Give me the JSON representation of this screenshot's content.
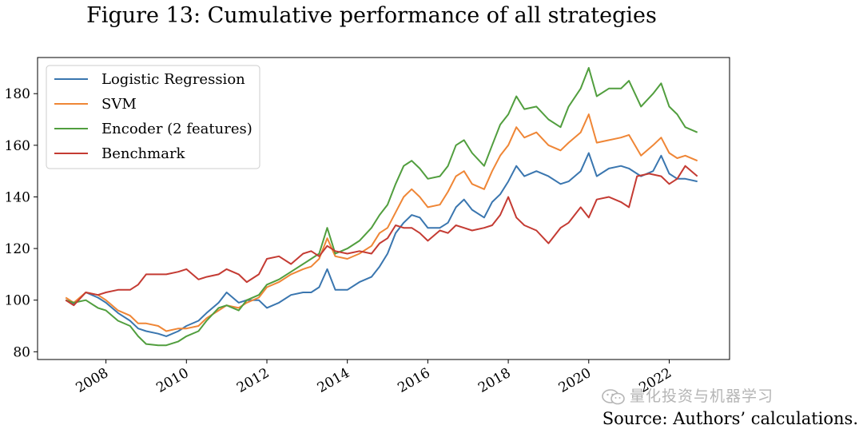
{
  "figure_title": "Figure 13: Cumulative performance of all strategies",
  "source_note": "Source: Authors’ calculations.",
  "watermark_text": "量化投资与机器学习",
  "chart_data": {
    "type": "line",
    "title": "Figure 13: Cumulative performance of all strategies",
    "xlabel": "",
    "ylabel": "",
    "xlim": [
      2006.3,
      2023.5
    ],
    "ylim": [
      77,
      194
    ],
    "x_ticks": [
      2008,
      2010,
      2012,
      2014,
      2016,
      2018,
      2020,
      2022
    ],
    "x_tick_labels": [
      "2008",
      "2010",
      "2012",
      "2014",
      "2016",
      "2018",
      "2020",
      "2022"
    ],
    "y_ticks": [
      80,
      100,
      120,
      140,
      160,
      180
    ],
    "y_tick_labels": [
      "80",
      "100",
      "120",
      "140",
      "160",
      "180"
    ],
    "grid": false,
    "legend_position": "top-left",
    "series": [
      {
        "name": "Logistic Regression",
        "color": "#3a76af",
        "points": [
          [
            2007.0,
            100
          ],
          [
            2007.2,
            98.5
          ],
          [
            2007.5,
            103
          ],
          [
            2007.8,
            101
          ],
          [
            2008.0,
            99
          ],
          [
            2008.3,
            95
          ],
          [
            2008.6,
            92
          ],
          [
            2008.8,
            89
          ],
          [
            2009.0,
            88
          ],
          [
            2009.3,
            87
          ],
          [
            2009.5,
            86
          ],
          [
            2009.8,
            88
          ],
          [
            2010.0,
            90
          ],
          [
            2010.3,
            92
          ],
          [
            2010.5,
            95
          ],
          [
            2010.8,
            99
          ],
          [
            2011.0,
            103
          ],
          [
            2011.3,
            99
          ],
          [
            2011.5,
            100
          ],
          [
            2011.8,
            100
          ],
          [
            2012.0,
            97
          ],
          [
            2012.3,
            99
          ],
          [
            2012.6,
            102
          ],
          [
            2012.9,
            103
          ],
          [
            2013.1,
            103
          ],
          [
            2013.3,
            105
          ],
          [
            2013.5,
            112
          ],
          [
            2013.7,
            104
          ],
          [
            2014.0,
            104
          ],
          [
            2014.3,
            107
          ],
          [
            2014.6,
            109
          ],
          [
            2014.8,
            113
          ],
          [
            2015.0,
            118
          ],
          [
            2015.2,
            126
          ],
          [
            2015.4,
            130
          ],
          [
            2015.6,
            133
          ],
          [
            2015.8,
            132
          ],
          [
            2016.0,
            128
          ],
          [
            2016.3,
            128
          ],
          [
            2016.5,
            130
          ],
          [
            2016.7,
            136
          ],
          [
            2016.9,
            139
          ],
          [
            2017.1,
            135
          ],
          [
            2017.4,
            132
          ],
          [
            2017.6,
            138
          ],
          [
            2017.8,
            141
          ],
          [
            2018.0,
            146
          ],
          [
            2018.2,
            152
          ],
          [
            2018.4,
            148
          ],
          [
            2018.7,
            150
          ],
          [
            2019.0,
            148
          ],
          [
            2019.3,
            145
          ],
          [
            2019.5,
            146
          ],
          [
            2019.8,
            150
          ],
          [
            2020.0,
            157
          ],
          [
            2020.2,
            148
          ],
          [
            2020.5,
            151
          ],
          [
            2020.8,
            152
          ],
          [
            2021.0,
            151
          ],
          [
            2021.3,
            148
          ],
          [
            2021.6,
            150
          ],
          [
            2021.8,
            156
          ],
          [
            2022.0,
            149
          ],
          [
            2022.2,
            147
          ],
          [
            2022.4,
            147
          ],
          [
            2022.7,
            146
          ]
        ]
      },
      {
        "name": "SVM",
        "color": "#ef8636",
        "points": [
          [
            2007.0,
            101
          ],
          [
            2007.2,
            99
          ],
          [
            2007.5,
            103
          ],
          [
            2007.8,
            102
          ],
          [
            2008.0,
            100
          ],
          [
            2008.3,
            96
          ],
          [
            2008.6,
            94
          ],
          [
            2008.8,
            91
          ],
          [
            2009.0,
            91
          ],
          [
            2009.3,
            90
          ],
          [
            2009.5,
            88
          ],
          [
            2009.8,
            89
          ],
          [
            2010.0,
            89
          ],
          [
            2010.3,
            90
          ],
          [
            2010.5,
            93
          ],
          [
            2010.8,
            96
          ],
          [
            2011.0,
            98
          ],
          [
            2011.3,
            97
          ],
          [
            2011.5,
            99
          ],
          [
            2011.8,
            101
          ],
          [
            2012.0,
            105
          ],
          [
            2012.3,
            107
          ],
          [
            2012.6,
            110
          ],
          [
            2012.9,
            112
          ],
          [
            2013.1,
            113
          ],
          [
            2013.3,
            116
          ],
          [
            2013.5,
            124
          ],
          [
            2013.7,
            117
          ],
          [
            2014.0,
            116
          ],
          [
            2014.3,
            118
          ],
          [
            2014.6,
            121
          ],
          [
            2014.8,
            126
          ],
          [
            2015.0,
            128
          ],
          [
            2015.2,
            134
          ],
          [
            2015.4,
            140
          ],
          [
            2015.6,
            143
          ],
          [
            2015.8,
            140
          ],
          [
            2016.0,
            136
          ],
          [
            2016.3,
            137
          ],
          [
            2016.5,
            142
          ],
          [
            2016.7,
            148
          ],
          [
            2016.9,
            150
          ],
          [
            2017.1,
            145
          ],
          [
            2017.4,
            143
          ],
          [
            2017.6,
            150
          ],
          [
            2017.8,
            156
          ],
          [
            2018.0,
            160
          ],
          [
            2018.2,
            167
          ],
          [
            2018.4,
            163
          ],
          [
            2018.7,
            165
          ],
          [
            2019.0,
            160
          ],
          [
            2019.3,
            158
          ],
          [
            2019.5,
            161
          ],
          [
            2019.8,
            165
          ],
          [
            2020.0,
            172
          ],
          [
            2020.2,
            161
          ],
          [
            2020.5,
            162
          ],
          [
            2020.8,
            163
          ],
          [
            2021.0,
            164
          ],
          [
            2021.3,
            156
          ],
          [
            2021.6,
            160
          ],
          [
            2021.8,
            163
          ],
          [
            2022.0,
            157
          ],
          [
            2022.2,
            155
          ],
          [
            2022.4,
            156
          ],
          [
            2022.7,
            154
          ]
        ]
      },
      {
        "name": "Encoder (2 features)",
        "color": "#519e3e",
        "points": [
          [
            2007.0,
            100
          ],
          [
            2007.2,
            99
          ],
          [
            2007.5,
            100
          ],
          [
            2007.8,
            97
          ],
          [
            2008.0,
            96
          ],
          [
            2008.3,
            92
          ],
          [
            2008.6,
            90
          ],
          [
            2008.8,
            86
          ],
          [
            2009.0,
            83
          ],
          [
            2009.3,
            82.5
          ],
          [
            2009.5,
            82.5
          ],
          [
            2009.8,
            84
          ],
          [
            2010.0,
            86
          ],
          [
            2010.3,
            88
          ],
          [
            2010.5,
            92
          ],
          [
            2010.8,
            97
          ],
          [
            2011.0,
            98
          ],
          [
            2011.3,
            96
          ],
          [
            2011.5,
            100
          ],
          [
            2011.8,
            102
          ],
          [
            2012.0,
            106
          ],
          [
            2012.3,
            108
          ],
          [
            2012.6,
            111
          ],
          [
            2012.9,
            114
          ],
          [
            2013.1,
            116
          ],
          [
            2013.3,
            118
          ],
          [
            2013.5,
            128
          ],
          [
            2013.7,
            118
          ],
          [
            2014.0,
            120
          ],
          [
            2014.3,
            123
          ],
          [
            2014.6,
            128
          ],
          [
            2014.8,
            133
          ],
          [
            2015.0,
            137
          ],
          [
            2015.2,
            145
          ],
          [
            2015.4,
            152
          ],
          [
            2015.6,
            154
          ],
          [
            2015.8,
            151
          ],
          [
            2016.0,
            147
          ],
          [
            2016.3,
            148
          ],
          [
            2016.5,
            152
          ],
          [
            2016.7,
            160
          ],
          [
            2016.9,
            162
          ],
          [
            2017.1,
            157
          ],
          [
            2017.4,
            152
          ],
          [
            2017.6,
            160
          ],
          [
            2017.8,
            168
          ],
          [
            2018.0,
            172
          ],
          [
            2018.2,
            179
          ],
          [
            2018.4,
            174
          ],
          [
            2018.7,
            175
          ],
          [
            2019.0,
            170
          ],
          [
            2019.3,
            167
          ],
          [
            2019.5,
            175
          ],
          [
            2019.8,
            182
          ],
          [
            2020.0,
            190
          ],
          [
            2020.2,
            179
          ],
          [
            2020.5,
            182
          ],
          [
            2020.8,
            182
          ],
          [
            2021.0,
            185
          ],
          [
            2021.3,
            175
          ],
          [
            2021.6,
            180
          ],
          [
            2021.8,
            184
          ],
          [
            2022.0,
            175
          ],
          [
            2022.2,
            172
          ],
          [
            2022.4,
            167
          ],
          [
            2022.7,
            165
          ]
        ]
      },
      {
        "name": "Benchmark",
        "color": "#c43b33",
        "points": [
          [
            2007.0,
            100
          ],
          [
            2007.2,
            98
          ],
          [
            2007.5,
            103
          ],
          [
            2007.8,
            102
          ],
          [
            2008.0,
            103
          ],
          [
            2008.3,
            104
          ],
          [
            2008.6,
            104
          ],
          [
            2008.8,
            106
          ],
          [
            2009.0,
            110
          ],
          [
            2009.3,
            110
          ],
          [
            2009.5,
            110
          ],
          [
            2009.8,
            111
          ],
          [
            2010.0,
            112
          ],
          [
            2010.3,
            108
          ],
          [
            2010.5,
            109
          ],
          [
            2010.8,
            110
          ],
          [
            2011.0,
            112
          ],
          [
            2011.3,
            110
          ],
          [
            2011.5,
            107
          ],
          [
            2011.8,
            110
          ],
          [
            2012.0,
            116
          ],
          [
            2012.3,
            117
          ],
          [
            2012.6,
            114
          ],
          [
            2012.9,
            118
          ],
          [
            2013.1,
            119
          ],
          [
            2013.3,
            117
          ],
          [
            2013.5,
            121
          ],
          [
            2013.7,
            119
          ],
          [
            2014.0,
            118
          ],
          [
            2014.3,
            119
          ],
          [
            2014.6,
            118
          ],
          [
            2014.8,
            122
          ],
          [
            2015.0,
            124
          ],
          [
            2015.2,
            129
          ],
          [
            2015.4,
            128
          ],
          [
            2015.6,
            128
          ],
          [
            2015.8,
            126
          ],
          [
            2016.0,
            123
          ],
          [
            2016.3,
            127
          ],
          [
            2016.5,
            126
          ],
          [
            2016.7,
            129
          ],
          [
            2016.9,
            128
          ],
          [
            2017.1,
            127
          ],
          [
            2017.4,
            128
          ],
          [
            2017.6,
            129
          ],
          [
            2017.8,
            133
          ],
          [
            2018.0,
            140
          ],
          [
            2018.2,
            132
          ],
          [
            2018.4,
            129
          ],
          [
            2018.7,
            127
          ],
          [
            2019.0,
            122
          ],
          [
            2019.3,
            128
          ],
          [
            2019.5,
            130
          ],
          [
            2019.8,
            136
          ],
          [
            2020.0,
            132
          ],
          [
            2020.2,
            139
          ],
          [
            2020.5,
            140
          ],
          [
            2020.8,
            138
          ],
          [
            2021.0,
            136
          ],
          [
            2021.2,
            148
          ],
          [
            2021.5,
            149
          ],
          [
            2021.8,
            148
          ],
          [
            2022.0,
            145
          ],
          [
            2022.2,
            147
          ],
          [
            2022.4,
            152
          ],
          [
            2022.7,
            148
          ]
        ]
      }
    ]
  }
}
